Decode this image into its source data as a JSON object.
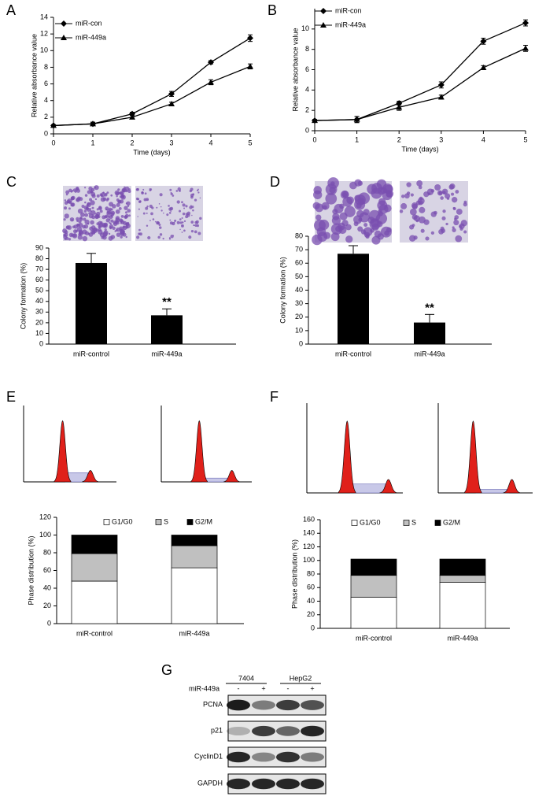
{
  "chart_data": [
    {
      "type": "line",
      "panel": "A",
      "xlabel": "Time (days)",
      "ylabel": "Relative absorbance value",
      "x": [
        0,
        1,
        2,
        3,
        4,
        5
      ],
      "xlim": [
        0,
        5
      ],
      "xticks": [
        0,
        1,
        2,
        3,
        4,
        5
      ],
      "ylim": [
        0,
        14
      ],
      "yticks": [
        0,
        2,
        4,
        6,
        8,
        10,
        12,
        14
      ],
      "legend": "upper left",
      "series": [
        {
          "name": "miR-con",
          "color": "#000000",
          "marker": "diamond",
          "values": [
            1,
            1.2,
            2.4,
            4.8,
            8.6,
            11.5
          ],
          "errors": [
            0.1,
            0.2,
            0.2,
            0.3,
            0.2,
            0.4
          ]
        },
        {
          "name": "miR-449a",
          "color": "#000000",
          "marker": "triangle",
          "values": [
            1,
            1.2,
            2.0,
            3.6,
            6.2,
            8.1
          ],
          "errors": [
            0.1,
            0.2,
            0.2,
            0.2,
            0.3,
            0.3
          ]
        }
      ]
    },
    {
      "type": "line",
      "panel": "B",
      "xlabel": "Time (days)",
      "ylabel": "Relative absorbance value",
      "x": [
        0,
        1,
        2,
        3,
        4,
        5
      ],
      "xlim": [
        0,
        5
      ],
      "xticks": [
        0,
        1,
        2,
        3,
        4,
        5
      ],
      "ylim": [
        0,
        12
      ],
      "yticks": [
        0,
        2,
        4,
        6,
        8,
        10
      ],
      "legend": "upper left",
      "series": [
        {
          "name": "miR-con",
          "color": "#000000",
          "marker": "diamond",
          "values": [
            1,
            1.1,
            2.7,
            4.5,
            8.8,
            10.6
          ],
          "errors": [
            0.1,
            0.3,
            0.2,
            0.3,
            0.3,
            0.3
          ]
        },
        {
          "name": "miR-449a",
          "color": "#000000",
          "marker": "triangle",
          "values": [
            1,
            1.1,
            2.3,
            3.3,
            6.2,
            8.1
          ],
          "errors": [
            0.1,
            0.3,
            0.3,
            0.2,
            0.2,
            0.3
          ]
        }
      ]
    },
    {
      "type": "bar",
      "panel": "C",
      "ylabel": "Colony formation (%)",
      "categories": [
        "miR-control",
        "miR-449a"
      ],
      "values": [
        76,
        27
      ],
      "errors": [
        9,
        6
      ],
      "color": "#000000",
      "ylim": [
        0,
        90
      ],
      "yticks": [
        0,
        10,
        20,
        30,
        40,
        50,
        60,
        70,
        80,
        90
      ],
      "annotation": "**"
    },
    {
      "type": "bar",
      "panel": "D",
      "ylabel": "Colony formation (%)",
      "categories": [
        "miR-control",
        "miR-449a"
      ],
      "values": [
        67,
        16
      ],
      "errors": [
        6,
        6
      ],
      "color": "#000000",
      "ylim": [
        0,
        80
      ],
      "yticks": [
        0,
        10,
        20,
        30,
        40,
        50,
        60,
        70,
        80
      ],
      "annotation": "**"
    },
    {
      "type": "bar",
      "stacked": true,
      "panel": "E",
      "ylabel": "Phase distribution (%)",
      "categories": [
        "miR-control",
        "miR-449a"
      ],
      "ylim": [
        0,
        120
      ],
      "yticks": [
        0,
        20,
        40,
        60,
        80,
        100,
        120
      ],
      "series": [
        {
          "name": "G1/G0",
          "color": "#ffffff",
          "values": [
            48,
            63
          ]
        },
        {
          "name": "S",
          "color": "#c0c0c0",
          "values": [
            31,
            25
          ]
        },
        {
          "name": "G2/M",
          "color": "#000000",
          "values": [
            21,
            12
          ]
        }
      ]
    },
    {
      "type": "bar",
      "stacked": true,
      "panel": "F",
      "ylabel": "Phase distribution (%)",
      "categories": [
        "miR-control",
        "miR-449a"
      ],
      "ylim": [
        0,
        160
      ],
      "yticks": [
        0,
        20,
        40,
        60,
        80,
        100,
        120,
        140,
        160
      ],
      "series": [
        {
          "name": "G1/G0",
          "color": "#ffffff",
          "values": [
            46,
            68
          ]
        },
        {
          "name": "S",
          "color": "#c0c0c0",
          "values": [
            32,
            10
          ]
        },
        {
          "name": "G2/M",
          "color": "#000000",
          "values": [
            24,
            24
          ]
        }
      ]
    }
  ],
  "blot": {
    "panel": "G",
    "treatment": "miR-449a",
    "cell_lines": [
      "7404",
      "HepG2"
    ],
    "signs": [
      "-",
      "+",
      "-",
      "+"
    ],
    "proteins": [
      "PCNA",
      "p21",
      "CyclinD1",
      "GAPDH"
    ]
  }
}
